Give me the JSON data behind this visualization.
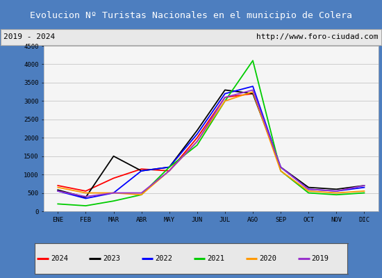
{
  "title": "Evolucion Nº Turistas Nacionales en el municipio de Colera",
  "subtitle_left": "2019 - 2024",
  "subtitle_right": "http://www.foro-ciudad.com",
  "title_bg_color": "#4d7ebf",
  "title_text_color": "#ffffff",
  "months": [
    "ENE",
    "FEB",
    "MAR",
    "ABR",
    "MAY",
    "JUN",
    "JUL",
    "AGO",
    "SEP",
    "OCT",
    "NOV",
    "DIC"
  ],
  "ylim": [
    0,
    4500
  ],
  "yticks": [
    0,
    500,
    1000,
    1500,
    2000,
    2500,
    3000,
    3500,
    4000,
    4500
  ],
  "series": {
    "2024": {
      "color": "#ff0000",
      "data": [
        700,
        550,
        900,
        1150,
        1100,
        2000,
        3100,
        3200,
        null,
        null,
        null,
        null
      ]
    },
    "2023": {
      "color": "#000000",
      "data": [
        580,
        380,
        1500,
        1100,
        1200,
        2200,
        3300,
        3200,
        1200,
        650,
        600,
        700
      ]
    },
    "2022": {
      "color": "#0000ff",
      "data": [
        550,
        350,
        500,
        1100,
        1200,
        2100,
        3200,
        3400,
        1200,
        600,
        550,
        650
      ]
    },
    "2021": {
      "color": "#00cc00",
      "data": [
        200,
        150,
        280,
        450,
        1200,
        1800,
        3000,
        4100,
        1100,
        500,
        450,
        500
      ]
    },
    "2020": {
      "color": "#ff9900",
      "data": [
        650,
        500,
        500,
        450,
        1100,
        1900,
        3000,
        3250,
        1100,
        550,
        500,
        550
      ]
    },
    "2019": {
      "color": "#9933cc",
      "data": [
        550,
        400,
        500,
        500,
        1100,
        1900,
        3100,
        3300,
        1200,
        600,
        550,
        700
      ]
    }
  },
  "legend_order": [
    "2024",
    "2023",
    "2022",
    "2021",
    "2020",
    "2019"
  ],
  "bg_color": "#e8e8e8",
  "plot_bg_color": "#f5f5f5",
  "grid_color": "#cccccc",
  "border_color": "#4d7ebf",
  "outer_bg": "#4d7ebf"
}
